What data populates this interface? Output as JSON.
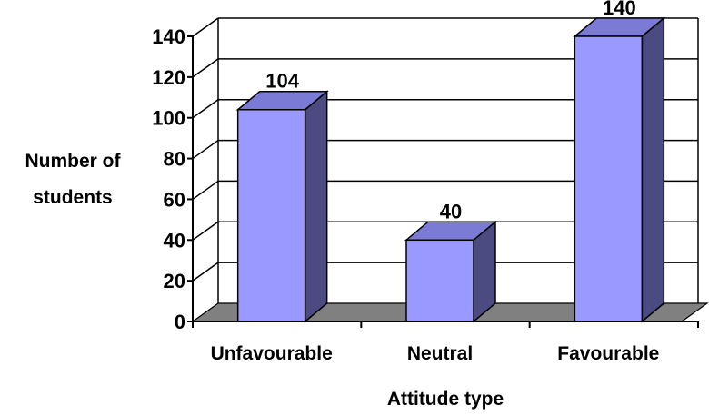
{
  "chart_data": {
    "type": "bar",
    "categories": [
      "Unfavourable",
      "Neutral",
      "Favourable"
    ],
    "values": [
      104,
      40,
      140
    ],
    "data_labels": [
      "104",
      "40",
      "140"
    ],
    "title": "",
    "xlabel": "Attitude type",
    "ylabel_lines": [
      "Number of",
      "students"
    ],
    "ylim": [
      0,
      140
    ],
    "yticks": [
      "0",
      "20",
      "40",
      "60",
      "80",
      "100",
      "120",
      "140"
    ],
    "grid": true,
    "bar_front_color": "#9999ff",
    "bar_side_color": "#4b4b82",
    "bar_top_color": "#7b7bd6",
    "floor_color": "#808080"
  }
}
